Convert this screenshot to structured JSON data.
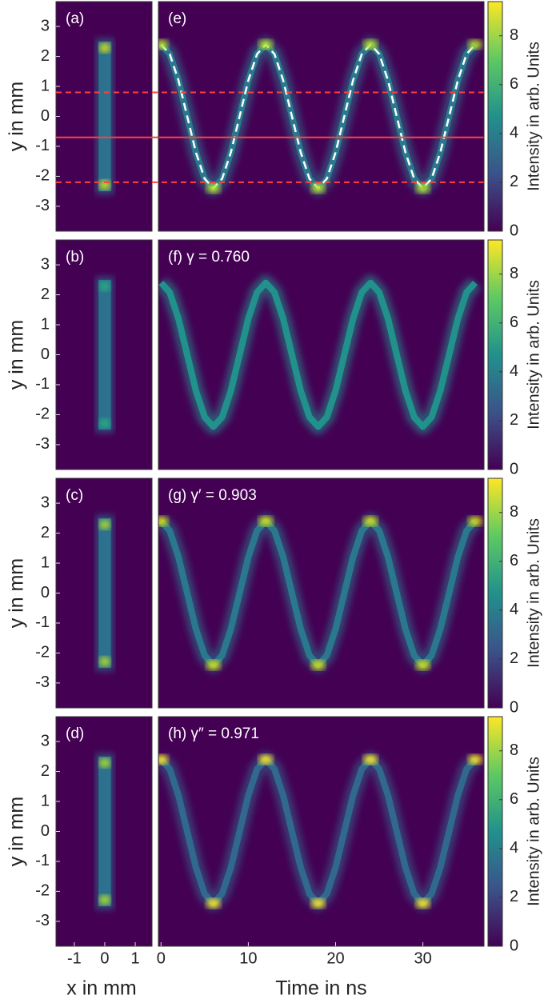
{
  "chart_data": [
    {
      "type": "image",
      "label": "(a)",
      "ylabel": "y in mm",
      "xlim": [
        -1.6,
        1.55
      ],
      "ylim": [
        -3.83,
        3.83
      ],
      "yticks": [
        -3,
        -2,
        -1,
        0,
        1,
        2,
        3
      ],
      "x_extent": [
        -0.2,
        0.2
      ],
      "y_extent": [
        -2.5,
        2.5
      ],
      "color": "#2c728e",
      "highlight_color": "#d8e219"
    },
    {
      "type": "line",
      "label": "(e)",
      "xlim": [
        -0.3,
        37
      ],
      "ylim": [
        -3.83,
        3.83
      ],
      "x": [
        0,
        1,
        2,
        3,
        4,
        5,
        6,
        7,
        8,
        9,
        10,
        11,
        12,
        13,
        14,
        15,
        16,
        17,
        18,
        19,
        20,
        21,
        22,
        23,
        24,
        25,
        26,
        27,
        28,
        29,
        30,
        31,
        32,
        33,
        34,
        35,
        36
      ],
      "series": [
        {
          "color": "#2a788e",
          "values": [
            2.4,
            2.08,
            1.2,
            0,
            -1.2,
            -2.08,
            -2.4,
            -2.08,
            -1.2,
            0,
            1.2,
            2.08,
            2.4,
            2.08,
            1.2,
            0,
            -1.2,
            -2.08,
            -2.4,
            -2.08,
            -1.2,
            0,
            1.2,
            2.08,
            2.4,
            2.08,
            1.2,
            0,
            -1.2,
            -2.08,
            -2.4,
            -2.08,
            -1.2,
            0,
            1.2,
            2.08,
            2.4
          ]
        },
        {
          "color": "#ffffff",
          "dashed": true,
          "values": [
            2.4,
            2.08,
            1.2,
            0,
            -1.2,
            -2.08,
            -2.4,
            -2.08,
            -1.2,
            0,
            1.2,
            2.08,
            2.4,
            2.08,
            1.2,
            0,
            -1.2,
            -2.08,
            -2.4,
            -2.08,
            -1.2,
            0,
            1.2,
            2.08,
            2.4,
            2.08,
            1.2,
            0,
            -1.2,
            -2.08,
            -2.4,
            -2.08,
            -1.2,
            0,
            1.2,
            2.08,
            2.4
          ]
        }
      ],
      "highlight_color": "#b5de2b",
      "hlines": [
        {
          "value": 0.8,
          "dashed": true
        },
        {
          "value": -0.7,
          "dashed": false
        },
        {
          "value": -2.2,
          "dashed": true
        }
      ],
      "hline_color": "#ff4040",
      "colorbar": {
        "label": "Intensity in arb. Units",
        "lim": [
          0,
          9.4
        ],
        "ticks": [
          0,
          2,
          4,
          6,
          8
        ]
      }
    },
    {
      "type": "image",
      "label": "(b)",
      "ylabel": "y in mm",
      "xlim": [
        -1.6,
        1.55
      ],
      "ylim": [
        -3.83,
        3.83
      ],
      "yticks": [
        -3,
        -2,
        -1,
        0,
        1,
        2,
        3
      ],
      "x_extent": [
        -0.2,
        0.2
      ],
      "y_extent": [
        -2.5,
        2.5
      ],
      "color": "#2c728e",
      "highlight_color": "#28ae80"
    },
    {
      "type": "line",
      "label": "(f) γ = 0.760",
      "xlim": [
        -0.3,
        37
      ],
      "ylim": [
        -3.83,
        3.83
      ],
      "x": [
        0,
        1,
        2,
        3,
        4,
        5,
        6,
        7,
        8,
        9,
        10,
        11,
        12,
        13,
        14,
        15,
        16,
        17,
        18,
        19,
        20,
        21,
        22,
        23,
        24,
        25,
        26,
        27,
        28,
        29,
        30,
        31,
        32,
        33,
        34,
        35,
        36
      ],
      "series": [
        {
          "color": "#21918c",
          "values": [
            2.4,
            2.08,
            1.2,
            0,
            -1.2,
            -2.08,
            -2.4,
            -2.08,
            -1.2,
            0,
            1.2,
            2.08,
            2.4,
            2.08,
            1.2,
            0,
            -1.2,
            -2.08,
            -2.4,
            -2.08,
            -1.2,
            0,
            1.2,
            2.08,
            2.4,
            2.08,
            1.2,
            0,
            -1.2,
            -2.08,
            -2.4,
            -2.08,
            -1.2,
            0,
            1.2,
            2.08,
            2.4
          ]
        }
      ],
      "colorbar": {
        "label": "Intensity in arb. Units",
        "lim": [
          0,
          9.4
        ],
        "ticks": [
          0,
          2,
          4,
          6,
          8
        ]
      }
    },
    {
      "type": "image",
      "label": "(c)",
      "ylabel": "y in mm",
      "xlim": [
        -1.6,
        1.55
      ],
      "ylim": [
        -3.83,
        3.83
      ],
      "yticks": [
        -3,
        -2,
        -1,
        0,
        1,
        2,
        3
      ],
      "x_extent": [
        -0.2,
        0.2
      ],
      "y_extent": [
        -2.5,
        2.5
      ],
      "color": "#2c728e",
      "highlight_color": "#b5de2b"
    },
    {
      "type": "line",
      "label": "(g) γ′ = 0.903",
      "xlim": [
        -0.3,
        37
      ],
      "ylim": [
        -3.83,
        3.83
      ],
      "x": [
        0,
        1,
        2,
        3,
        4,
        5,
        6,
        7,
        8,
        9,
        10,
        11,
        12,
        13,
        14,
        15,
        16,
        17,
        18,
        19,
        20,
        21,
        22,
        23,
        24,
        25,
        26,
        27,
        28,
        29,
        30,
        31,
        32,
        33,
        34,
        35,
        36
      ],
      "series": [
        {
          "color": "#2a788e",
          "values": [
            2.4,
            2.08,
            1.2,
            0,
            -1.2,
            -2.08,
            -2.4,
            -2.08,
            -1.2,
            0,
            1.2,
            2.08,
            2.4,
            2.08,
            1.2,
            0,
            -1.2,
            -2.08,
            -2.4,
            -2.08,
            -1.2,
            0,
            1.2,
            2.08,
            2.4,
            2.08,
            1.2,
            0,
            -1.2,
            -2.08,
            -2.4,
            -2.08,
            -1.2,
            0,
            1.2,
            2.08,
            2.4
          ]
        }
      ],
      "highlight_color": "#d8e219",
      "colorbar": {
        "label": "Intensity in arb. Units",
        "lim": [
          0,
          9.4
        ],
        "ticks": [
          0,
          2,
          4,
          6,
          8
        ]
      }
    },
    {
      "type": "image",
      "label": "(d)",
      "ylabel": "y in mm",
      "xlabel": "x in mm",
      "xlim": [
        -1.6,
        1.55
      ],
      "ylim": [
        -3.83,
        3.83
      ],
      "yticks": [
        -3,
        -2,
        -1,
        0,
        1,
        2,
        3
      ],
      "xticks": [
        -1,
        0,
        1
      ],
      "x_extent": [
        -0.2,
        0.2
      ],
      "y_extent": [
        -2.5,
        2.5
      ],
      "color": "#2c728e",
      "highlight_color": "#b5de2b"
    },
    {
      "type": "line",
      "label": "(h) γ″ = 0.971",
      "xlabel": "Time in ns",
      "xlim": [
        -0.3,
        37
      ],
      "ylim": [
        -3.83,
        3.83
      ],
      "xticks": [
        0,
        10,
        20,
        30
      ],
      "x": [
        0,
        1,
        2,
        3,
        4,
        5,
        6,
        7,
        8,
        9,
        10,
        11,
        12,
        13,
        14,
        15,
        16,
        17,
        18,
        19,
        20,
        21,
        22,
        23,
        24,
        25,
        26,
        27,
        28,
        29,
        30,
        31,
        32,
        33,
        34,
        35,
        36
      ],
      "series": [
        {
          "color": "#31688e",
          "values": [
            2.4,
            2.08,
            1.2,
            0,
            -1.2,
            -2.08,
            -2.4,
            -2.08,
            -1.2,
            0,
            1.2,
            2.08,
            2.4,
            2.08,
            1.2,
            0,
            -1.2,
            -2.08,
            -2.4,
            -2.08,
            -1.2,
            0,
            1.2,
            2.08,
            2.4,
            2.08,
            1.2,
            0,
            -1.2,
            -2.08,
            -2.4,
            -2.08,
            -1.2,
            0,
            1.2,
            2.08,
            2.4
          ]
        }
      ],
      "highlight_color": "#fde725",
      "colorbar": {
        "label": "Intensity in arb. Units",
        "lim": [
          0,
          9.4
        ],
        "ticks": [
          0,
          2,
          4,
          6,
          8
        ]
      }
    }
  ]
}
